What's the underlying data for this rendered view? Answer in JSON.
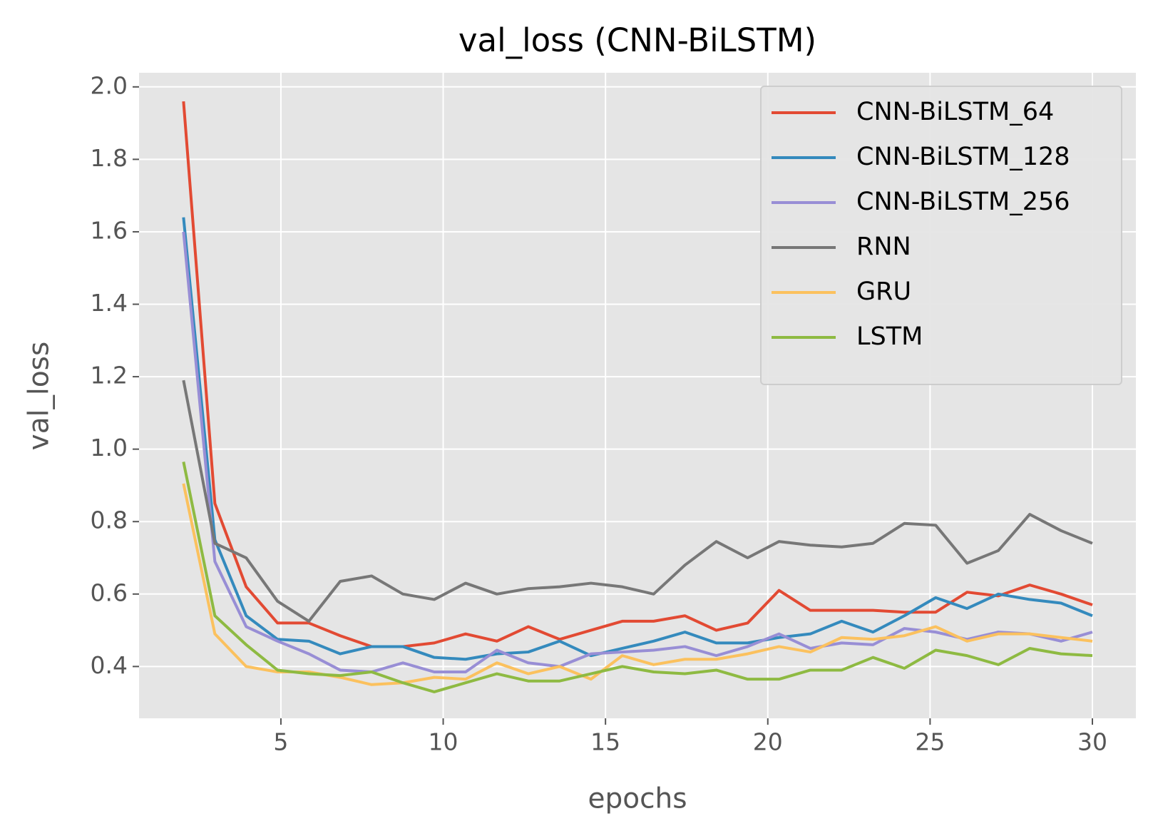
{
  "chart_data": {
    "type": "line",
    "title": "val_loss (CNN-BiLSTM)",
    "x_label": "epochs",
    "y_label": "val_loss",
    "x": [
      2,
      2.966,
      3.931,
      4.897,
      5.862,
      6.828,
      7.793,
      8.759,
      9.724,
      10.69,
      11.655,
      12.621,
      13.586,
      14.552,
      15.517,
      16.483,
      17.448,
      18.414,
      19.379,
      20.345,
      21.31,
      22.276,
      23.241,
      24.207,
      25.172,
      26.138,
      27.103,
      28.069,
      29.034,
      30
    ],
    "series": [
      {
        "name": "CNN-BiLSTM_64",
        "color": "#E24A33",
        "values": [
          1.96,
          0.85,
          0.62,
          0.52,
          0.52,
          0.485,
          0.455,
          0.455,
          0.465,
          0.49,
          0.47,
          0.51,
          0.475,
          0.5,
          0.525,
          0.525,
          0.54,
          0.5,
          0.52,
          0.61,
          0.555,
          0.555,
          0.555,
          0.55,
          0.55,
          0.605,
          0.595,
          0.625,
          0.6,
          0.57
        ]
      },
      {
        "name": "CNN-BiLSTM_128",
        "color": "#348ABD",
        "values": [
          1.64,
          0.75,
          0.54,
          0.475,
          0.47,
          0.435,
          0.455,
          0.455,
          0.425,
          0.42,
          0.435,
          0.44,
          0.47,
          0.43,
          0.45,
          0.47,
          0.495,
          0.465,
          0.465,
          0.48,
          0.49,
          0.525,
          0.495,
          0.54,
          0.59,
          0.56,
          0.6,
          0.585,
          0.575,
          0.54
        ]
      },
      {
        "name": "CNN-BiLSTM_256",
        "color": "#988ED5",
        "values": [
          1.6,
          0.69,
          0.51,
          0.47,
          0.435,
          0.39,
          0.385,
          0.41,
          0.385,
          0.385,
          0.445,
          0.41,
          0.4,
          0.435,
          0.44,
          0.445,
          0.455,
          0.43,
          0.455,
          0.49,
          0.45,
          0.465,
          0.46,
          0.505,
          0.495,
          0.475,
          0.495,
          0.49,
          0.47,
          0.495
        ]
      },
      {
        "name": "RNN",
        "color": "#777777",
        "values": [
          1.19,
          0.74,
          0.7,
          0.58,
          0.525,
          0.635,
          0.65,
          0.6,
          0.585,
          0.63,
          0.6,
          0.615,
          0.62,
          0.63,
          0.62,
          0.6,
          0.68,
          0.745,
          0.7,
          0.745,
          0.735,
          0.73,
          0.74,
          0.795,
          0.79,
          0.685,
          0.72,
          0.82,
          0.775,
          0.74
        ]
      },
      {
        "name": "GRU",
        "color": "#FBC15E",
        "values": [
          0.905,
          0.49,
          0.4,
          0.385,
          0.385,
          0.37,
          0.35,
          0.355,
          0.37,
          0.365,
          0.41,
          0.38,
          0.4,
          0.365,
          0.43,
          0.405,
          0.42,
          0.42,
          0.435,
          0.455,
          0.44,
          0.48,
          0.475,
          0.485,
          0.51,
          0.47,
          0.49,
          0.49,
          0.48,
          0.47
        ]
      },
      {
        "name": "LSTM",
        "color": "#8EBA42",
        "values": [
          0.965,
          0.54,
          0.46,
          0.39,
          0.38,
          0.375,
          0.385,
          0.355,
          0.33,
          0.355,
          0.38,
          0.36,
          0.36,
          0.38,
          0.4,
          0.385,
          0.38,
          0.39,
          0.365,
          0.365,
          0.39,
          0.39,
          0.425,
          0.395,
          0.445,
          0.43,
          0.405,
          0.45,
          0.435,
          0.43
        ]
      }
    ],
    "xlim": [
      0.63,
      31.34
    ],
    "xticks": [
      5,
      10,
      15,
      20,
      25,
      30
    ],
    "ylim": [
      0.257,
      2.039
    ],
    "yticks": [
      {
        "value": 0.4,
        "label": "0.4"
      },
      {
        "value": 0.6,
        "label": "0.6"
      },
      {
        "value": 0.8,
        "label": "0.8"
      },
      {
        "value": 1.0,
        "label": "1.0"
      },
      {
        "value": 1.2,
        "label": "1.2"
      },
      {
        "value": 1.4,
        "label": "1.4"
      },
      {
        "value": 1.6,
        "label": "1.6"
      },
      {
        "value": 1.8,
        "label": "1.8"
      },
      {
        "value": 2.0,
        "label": "2.0"
      }
    ],
    "grid": true,
    "legend": "upper right"
  }
}
